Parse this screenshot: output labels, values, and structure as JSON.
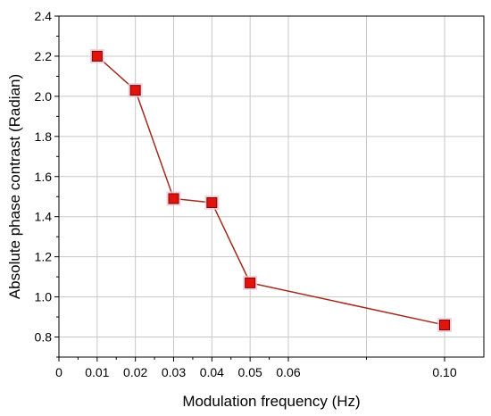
{
  "chart_data": {
    "type": "line",
    "title": "",
    "xlabel": "Modulation frequency (Hz)",
    "ylabel": "Absolute phase contrast (Radian)",
    "x_ticks": [
      {
        "value": 0,
        "label": "0"
      },
      {
        "value": 0.01,
        "label": "0.01"
      },
      {
        "value": 0.02,
        "label": "0.02"
      },
      {
        "value": 0.03,
        "label": "0.03"
      },
      {
        "value": 0.04,
        "label": "0.04"
      },
      {
        "value": 0.05,
        "label": "0.05"
      },
      {
        "value": 0.06,
        "label": "0.06"
      },
      {
        "value": 0.1,
        "label": "0.10"
      }
    ],
    "x_gridlines": [
      0.01,
      0.02,
      0.03,
      0.04,
      0.05,
      0.06,
      0.08,
      0.1
    ],
    "x_segments": [
      {
        "from": 0,
        "to": 0.06
      },
      {
        "from": 0.06,
        "to": 0.1
      }
    ],
    "y_ticks": [
      "0.8",
      "1.0",
      "1.2",
      "1.4",
      "1.6",
      "1.8",
      "2.0",
      "2.2",
      "2.4"
    ],
    "xlim": [
      0,
      0.11
    ],
    "ylim": [
      0.7,
      2.4
    ],
    "grid": true,
    "series": [
      {
        "x": [
          0.01,
          0.02,
          0.03,
          0.04,
          0.05,
          0.1
        ],
        "y": [
          2.2,
          2.03,
          1.49,
          1.47,
          1.07,
          0.86
        ]
      }
    ],
    "colors": {
      "line": "#a02a1c",
      "marker_fill": "#e0140c",
      "marker_stroke": "#7a0808",
      "marker_glow": "#f3c6d4",
      "grid": "#c8c8c8",
      "axis": "#000000"
    }
  }
}
